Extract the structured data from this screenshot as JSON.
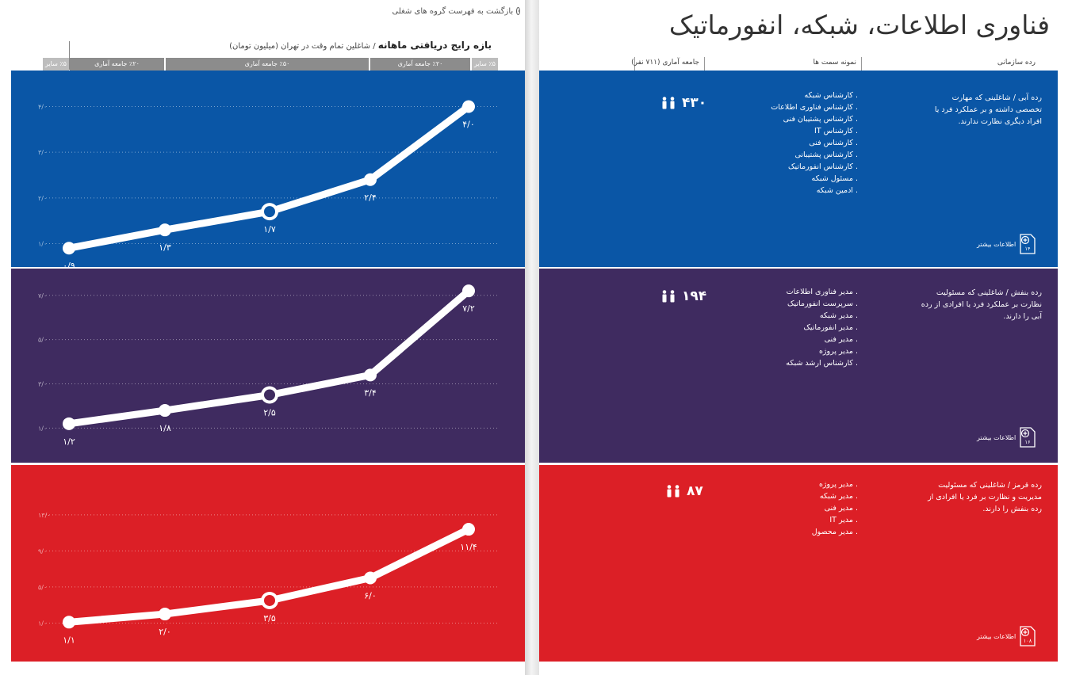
{
  "header": {
    "back_link": "بازگشت به فهرست گروه های شغلی",
    "main_title": "فناوری اطلاعات، شبکه، انفورماتیک",
    "chart_title": "بازه رایج دریافتی ماهانه",
    "chart_subtitle": " / شاغلین تمام وقت در تهران (میلیون تومان)"
  },
  "percentile_band": {
    "segments": [
      {
        "label": "٪۵ سایر",
        "fill": "#bdbdbd"
      },
      {
        "label": "٪۲۰ جامعه آماری",
        "fill": "#8c8c8c"
      },
      {
        "label": "٪۵۰ جامعه آماری",
        "fill": "#8c8c8c"
      },
      {
        "label": "٪۲۰ جامعه آماری",
        "fill": "#8c8c8c"
      },
      {
        "label": "٪۵ سایر",
        "fill": "#bdbdbd"
      }
    ]
  },
  "columns": {
    "level": "رده سازمانی",
    "samples": "نمونه سمت ها",
    "population": "جامعه آماری (۷۱۱ نفر)"
  },
  "bands": [
    {
      "color": "#0a56a6",
      "level_text": "رده آبی / شاغلینی که مهارت تخصصی داشته و بر عملکرد فرد یا افراد دیگری نظارت ندارند.",
      "roles": [
        ". کارشناس شبکه",
        ". کارشناس فناوری اطلاعات",
        ". کارشناس پشتیبان فنی",
        ". کارشناس IT",
        ". کارشناس فنی",
        ". کارشناس پشتیبانی",
        ". کارشناس انفورماتیک",
        ". مسئول شبکه",
        ". ادمین شبکه"
      ],
      "count": "۴۳۰",
      "more_label": "اطلاعات بیشتر",
      "page_ref": "۱۴"
    },
    {
      "color": "#3f2b60",
      "level_text": "رده بنفش / شاغلینی که مسئولیت نظارت بر عملکرد فرد یا افرادی از رده آبی را دارند.",
      "roles": [
        ". مدیر فناوری اطلاعات",
        ". سرپرست انفورماتیک",
        ". مدیر شبکه",
        ". مدیر انفورماتیک",
        ". مدیر فنی",
        ". مدیر پروژه",
        ". کارشناس ارشد شبکه"
      ],
      "count": "۱۹۴",
      "more_label": "اطلاعات بیشتر",
      "page_ref": "۱۶"
    },
    {
      "color": "#dc1f26",
      "level_text": "رده قرمز / شاغلینی که مسئولیت مدیریت و نظارت بر فرد یا افرادی از رده بنفش را دارند.",
      "roles": [
        ". مدیر پروژه",
        ". مدیر شبکه",
        ". مدیر فنی",
        ". مدیر IT",
        ". مدیر محصول"
      ],
      "count": "۸۷",
      "more_label": "اطلاعات بیشتر",
      "page_ref": "۱۰۸"
    }
  ],
  "chart_data": [
    {
      "type": "line",
      "x_percentiles": [
        5,
        25,
        50,
        75,
        95
      ],
      "values": [
        0.9,
        1.3,
        1.7,
        2.4,
        4.0
      ],
      "value_labels": [
        "۰/۹",
        "۱/۳",
        "۱/۷",
        "۲/۴",
        "۴/۰"
      ],
      "median_index": 2,
      "ylim": [
        0.8,
        4.2
      ],
      "yticks": [
        1.0,
        2.0,
        3.0,
        4.0
      ],
      "ytick_labels": [
        "۱/۰",
        "۲/۰",
        "۳/۰",
        "۴/۰"
      ],
      "grid": true
    },
    {
      "type": "line",
      "x_percentiles": [
        5,
        25,
        50,
        75,
        95
      ],
      "values": [
        1.2,
        1.8,
        2.5,
        3.4,
        7.2
      ],
      "value_labels": [
        "۱/۲",
        "۱/۸",
        "۲/۵",
        "۳/۴",
        "۷/۲"
      ],
      "median_index": 2,
      "ylim": [
        0.8,
        7.6
      ],
      "yticks": [
        1.0,
        3.0,
        5.0,
        7.0
      ],
      "ytick_labels": [
        "۱/۰",
        "۳/۰",
        "۵/۰",
        "۷/۰"
      ],
      "grid": true
    },
    {
      "type": "line",
      "x_percentiles": [
        5,
        25,
        50,
        75,
        95
      ],
      "values": [
        1.1,
        2.0,
        3.5,
        6.0,
        11.4
      ],
      "value_labels": [
        "۱/۱",
        "۲/۰",
        "۳/۵",
        "۶/۰",
        "۱۱/۴"
      ],
      "median_index": 2,
      "ylim": [
        0.6,
        13.6
      ],
      "yticks": [
        1.0,
        5.0,
        9.0,
        13.0
      ],
      "ytick_labels": [
        "۱/۰",
        "۵/۰",
        "۹/۰",
        "۱۳/۰"
      ],
      "grid": true
    }
  ]
}
